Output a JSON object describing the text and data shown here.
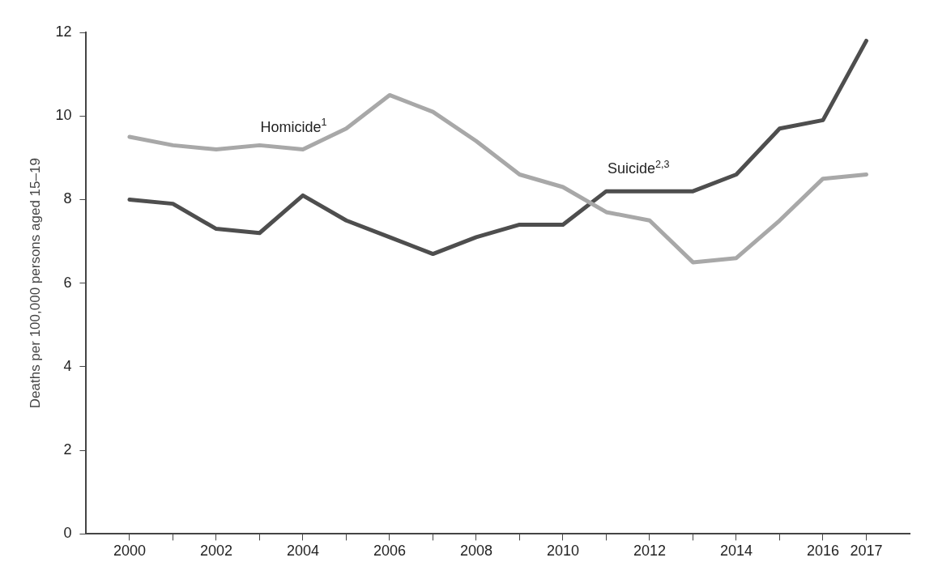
{
  "chart_data": {
    "type": "line",
    "ylabel": "Deaths per 100,000 persons aged 15–19",
    "x": [
      2000,
      2001,
      2002,
      2003,
      2004,
      2005,
      2006,
      2007,
      2008,
      2009,
      2010,
      2011,
      2012,
      2013,
      2014,
      2015,
      2016,
      2017
    ],
    "xlim": [
      1999,
      2018
    ],
    "xticks": [
      2000,
      {
        "value": 2001,
        "label": null
      },
      2002,
      {
        "value": 2003,
        "label": null
      },
      2004,
      {
        "value": 2005,
        "label": null
      },
      2006,
      {
        "value": 2007,
        "label": null
      },
      2008,
      {
        "value": 2009,
        "label": null
      },
      2010,
      {
        "value": 2011,
        "label": null
      },
      2012,
      {
        "value": 2013,
        "label": null
      },
      2014,
      {
        "value": 2015,
        "label": null
      },
      2016,
      2017
    ],
    "ylim": [
      0,
      12
    ],
    "yticks": [
      0,
      2,
      4,
      6,
      8,
      10,
      12
    ],
    "grid": false,
    "legend": false,
    "marker": "none",
    "line_style": "solid",
    "series": [
      {
        "name": "Homicide$^{1}$",
        "color": "#a8a8a8",
        "values": [
          9.5,
          9.3,
          9.2,
          9.3,
          9.2,
          9.7,
          10.5,
          10.1,
          9.4,
          8.6,
          8.3,
          7.7,
          7.5,
          6.5,
          6.6,
          7.5,
          8.5,
          8.6
        ]
      },
      {
        "name": "Suicide$^{2,3}$",
        "color": "#4e4e4e",
        "values": [
          8.0,
          7.9,
          7.3,
          7.2,
          8.1,
          7.5,
          7.1,
          6.7,
          7.1,
          7.4,
          7.4,
          8.2,
          8.2,
          8.2,
          8.6,
          9.7,
          9.9,
          11.8
        ]
      }
    ]
  }
}
